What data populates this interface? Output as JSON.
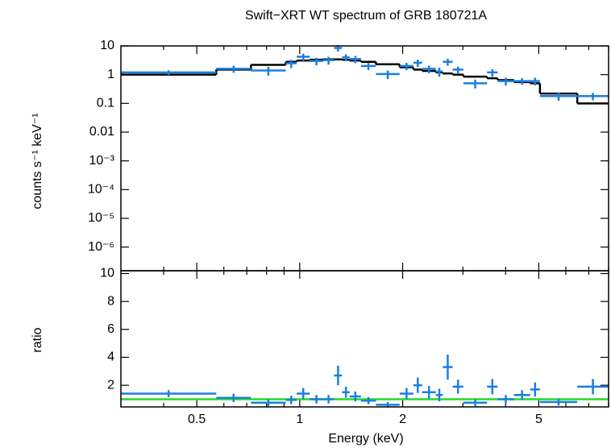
{
  "chart_data": [
    {
      "type": "spectrum",
      "title": "Swift−XRT WT spectrum of GRB 180721A",
      "ylabel": "counts s⁻¹ keV⁻¹",
      "log_y": true,
      "ylim": [
        1.5e-07,
        10
      ],
      "yticks": [
        10,
        1,
        0.1,
        0.01,
        {
          "value": 0.001,
          "label": "10⁻³"
        },
        {
          "value": 0.0001,
          "label": "10⁻⁴"
        },
        {
          "value": 1e-05,
          "label": "10⁻⁵"
        },
        {
          "value": 1e-06,
          "label": "10⁻⁶"
        }
      ],
      "bins": [
        0.3,
        0.57,
        0.72,
        0.91,
        0.98,
        1.07,
        1.17,
        1.26,
        1.33,
        1.4,
        1.51,
        1.67,
        1.96,
        2.15,
        2.28,
        2.5,
        2.62,
        2.8,
        3.01,
        3.53,
        3.79,
        4.23,
        4.72,
        5.04,
        6.48,
        8.0
      ],
      "data": {
        "color": "#1a7fe0",
        "values": [
          1.2,
          1.6,
          1.4,
          2.5,
          4.2,
          3,
          3.2,
          8.5,
          4,
          3.5,
          2,
          1.05,
          2,
          2.6,
          1.6,
          1.3,
          2.8,
          1.5,
          0.5,
          1.2,
          0.6,
          0.6,
          0.6,
          0.18,
          0.18
        ],
        "yerr": [
          0.22,
          0.44,
          0.47,
          0.8,
          1.2,
          0.9,
          0.96,
          2.2,
          1.07,
          1.0,
          0.56,
          0.35,
          0.57,
          0.72,
          0.48,
          0.45,
          0.76,
          0.39,
          0.17,
          0.35,
          0.18,
          0.16,
          0.18,
          0.056,
          0.052
        ]
      },
      "model": {
        "color": "#000000",
        "values": [
          1.0,
          1.5,
          2.2,
          2.8,
          3.1,
          3.3,
          3.4,
          3.4,
          3.3,
          3.1,
          2.8,
          2.3,
          1.8,
          1.5,
          1.35,
          1.2,
          1.1,
          1.0,
          0.85,
          0.75,
          0.65,
          0.55,
          0.5,
          0.22,
          0.1
        ]
      }
    },
    {
      "type": "ratio",
      "ylabel": "ratio",
      "xlabel": "Energy (keV)",
      "log_x": true,
      "xlim": [
        0.3,
        8.0
      ],
      "xticks": [
        0.5,
        1,
        2,
        5
      ],
      "xminor": [
        0.4,
        0.6,
        0.7,
        0.8,
        0.9,
        3,
        4,
        6,
        7,
        8
      ],
      "ylim": [
        0.45,
        10.2
      ],
      "yticks": [
        2,
        4,
        6,
        8,
        10
      ],
      "reference": {
        "value": 1,
        "color": "#22dd22"
      },
      "data": {
        "color": "#1a7fe0",
        "values": [
          1.4,
          1.1,
          0.75,
          0.95,
          1.4,
          1.0,
          1.0,
          2.7,
          1.5,
          1.2,
          0.9,
          0.6,
          1.4,
          2.0,
          1.5,
          1.3,
          3.3,
          1.9,
          0.75,
          1.9,
          1.0,
          1.3,
          1.7,
          0.8,
          1.9
        ],
        "yerr": [
          0.25,
          0.3,
          0.25,
          0.3,
          0.4,
          0.3,
          0.3,
          0.7,
          0.4,
          0.35,
          0.25,
          0.2,
          0.4,
          0.55,
          0.45,
          0.45,
          0.9,
          0.5,
          0.25,
          0.55,
          0.3,
          0.35,
          0.5,
          0.25,
          0.55
        ]
      }
    }
  ]
}
